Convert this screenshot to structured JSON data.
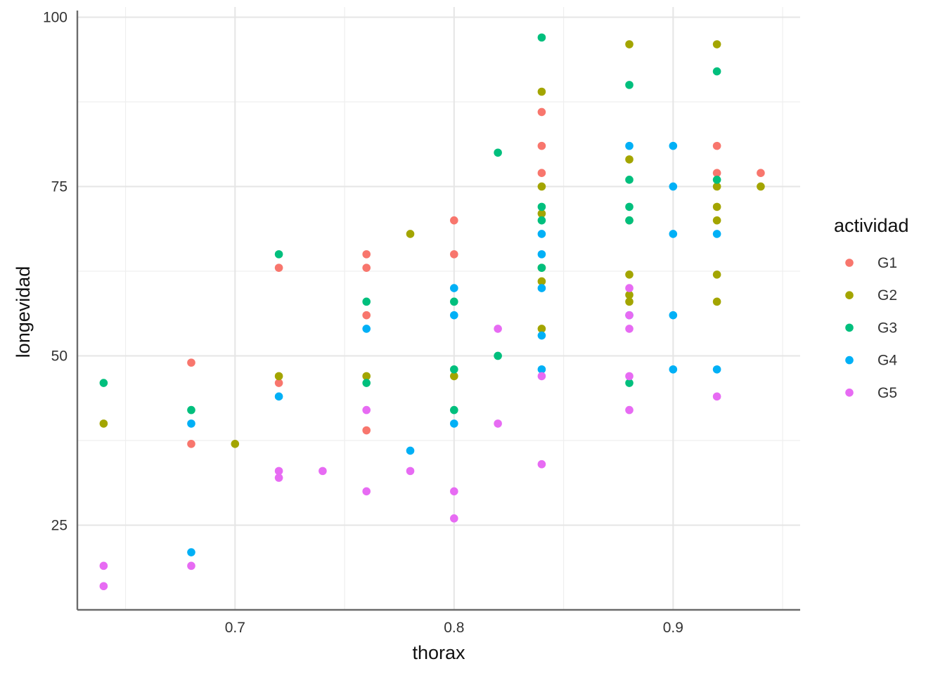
{
  "chart_data": {
    "type": "scatter",
    "xlabel": "thorax",
    "ylabel": "longevidad",
    "xlim": [
      0.628,
      0.958
    ],
    "ylim": [
      12.5,
      101.5
    ],
    "x_ticks": [
      0.7,
      0.8,
      0.9
    ],
    "x_tick_labels": [
      "0.7",
      "0.8",
      "0.9"
    ],
    "x_minor": [
      0.65,
      0.75,
      0.85,
      0.95
    ],
    "y_ticks": [
      25,
      50,
      75,
      100
    ],
    "y_tick_labels": [
      "25",
      "50",
      "75",
      "100"
    ],
    "y_minor": [
      12.5,
      37.5,
      62.5,
      87.5
    ],
    "grid": true,
    "legend": {
      "title": "actividad",
      "placement": "right"
    },
    "series": [
      {
        "name": "G1",
        "color": "#F8766D",
        "points": [
          [
            0.68,
            49
          ],
          [
            0.68,
            37
          ],
          [
            0.72,
            63
          ],
          [
            0.72,
            46
          ],
          [
            0.76,
            65
          ],
          [
            0.76,
            63
          ],
          [
            0.76,
            56
          ],
          [
            0.76,
            39
          ],
          [
            0.8,
            70
          ],
          [
            0.8,
            65
          ],
          [
            0.84,
            86
          ],
          [
            0.84,
            81
          ],
          [
            0.84,
            77
          ],
          [
            0.92,
            81
          ],
          [
            0.92,
            77
          ],
          [
            0.94,
            77
          ]
        ]
      },
      {
        "name": "G2",
        "color": "#A3A500",
        "points": [
          [
            0.64,
            40
          ],
          [
            0.7,
            37
          ],
          [
            0.72,
            47
          ],
          [
            0.76,
            47
          ],
          [
            0.78,
            68
          ],
          [
            0.8,
            47
          ],
          [
            0.84,
            89
          ],
          [
            0.84,
            75
          ],
          [
            0.84,
            71
          ],
          [
            0.84,
            63
          ],
          [
            0.84,
            61
          ],
          [
            0.84,
            54
          ],
          [
            0.88,
            96
          ],
          [
            0.88,
            79
          ],
          [
            0.88,
            70
          ],
          [
            0.88,
            62
          ],
          [
            0.88,
            59
          ],
          [
            0.88,
            58
          ],
          [
            0.92,
            96
          ],
          [
            0.92,
            75
          ],
          [
            0.92,
            72
          ],
          [
            0.92,
            70
          ],
          [
            0.92,
            62
          ],
          [
            0.92,
            58
          ],
          [
            0.94,
            75
          ]
        ]
      },
      {
        "name": "G3",
        "color": "#00BF7D",
        "points": [
          [
            0.64,
            46
          ],
          [
            0.68,
            42
          ],
          [
            0.72,
            65
          ],
          [
            0.76,
            58
          ],
          [
            0.76,
            46
          ],
          [
            0.8,
            58
          ],
          [
            0.8,
            48
          ],
          [
            0.8,
            42
          ],
          [
            0.82,
            80
          ],
          [
            0.82,
            50
          ],
          [
            0.84,
            97
          ],
          [
            0.84,
            72
          ],
          [
            0.84,
            70
          ],
          [
            0.84,
            63
          ],
          [
            0.88,
            90
          ],
          [
            0.88,
            76
          ],
          [
            0.88,
            72
          ],
          [
            0.88,
            70
          ],
          [
            0.88,
            46
          ],
          [
            0.92,
            92
          ],
          [
            0.92,
            76
          ]
        ]
      },
      {
        "name": "G4",
        "color": "#00B0F6",
        "points": [
          [
            0.68,
            40
          ],
          [
            0.68,
            21
          ],
          [
            0.72,
            44
          ],
          [
            0.76,
            54
          ],
          [
            0.78,
            36
          ],
          [
            0.8,
            60
          ],
          [
            0.8,
            56
          ],
          [
            0.8,
            40
          ],
          [
            0.84,
            68
          ],
          [
            0.84,
            65
          ],
          [
            0.84,
            60
          ],
          [
            0.84,
            53
          ],
          [
            0.84,
            48
          ],
          [
            0.88,
            81
          ],
          [
            0.88,
            56
          ],
          [
            0.9,
            81
          ],
          [
            0.9,
            75
          ],
          [
            0.9,
            68
          ],
          [
            0.9,
            56
          ],
          [
            0.9,
            48
          ],
          [
            0.92,
            68
          ],
          [
            0.92,
            48
          ]
        ]
      },
      {
        "name": "G5",
        "color": "#E76BF3",
        "points": [
          [
            0.64,
            19
          ],
          [
            0.64,
            16
          ],
          [
            0.68,
            19
          ],
          [
            0.72,
            33
          ],
          [
            0.72,
            32
          ],
          [
            0.74,
            33
          ],
          [
            0.76,
            42
          ],
          [
            0.76,
            30
          ],
          [
            0.78,
            33
          ],
          [
            0.8,
            30
          ],
          [
            0.8,
            26
          ],
          [
            0.82,
            54
          ],
          [
            0.82,
            40
          ],
          [
            0.84,
            47
          ],
          [
            0.84,
            34
          ],
          [
            0.88,
            60
          ],
          [
            0.88,
            56
          ],
          [
            0.88,
            54
          ],
          [
            0.88,
            47
          ],
          [
            0.88,
            42
          ],
          [
            0.92,
            44
          ]
        ]
      }
    ]
  }
}
